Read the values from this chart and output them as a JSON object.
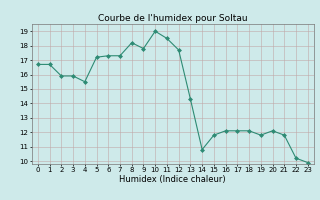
{
  "title": "Courbe de l'humidex pour Soltau",
  "xlabel": "Humidex (Indice chaleur)",
  "x": [
    0,
    1,
    2,
    3,
    4,
    5,
    6,
    7,
    8,
    9,
    10,
    11,
    12,
    13,
    14,
    15,
    16,
    17,
    18,
    19,
    20,
    21,
    22,
    23
  ],
  "y": [
    16.7,
    16.7,
    15.9,
    15.9,
    15.5,
    17.2,
    17.3,
    17.3,
    18.2,
    17.8,
    19.0,
    18.5,
    17.7,
    14.3,
    10.8,
    11.8,
    12.1,
    12.1,
    12.1,
    11.8,
    12.1,
    11.8,
    10.2,
    9.9
  ],
  "line_color": "#2e8b74",
  "marker": "D",
  "marker_size": 2.0,
  "line_width": 0.8,
  "bg_color": "#ceeaea",
  "grid_color": "#c0a8a8",
  "ylim": [
    9.8,
    19.5
  ],
  "xlim": [
    -0.5,
    23.5
  ],
  "yticks": [
    10,
    11,
    12,
    13,
    14,
    15,
    16,
    17,
    18,
    19
  ],
  "xticks": [
    0,
    1,
    2,
    3,
    4,
    5,
    6,
    7,
    8,
    9,
    10,
    11,
    12,
    13,
    14,
    15,
    16,
    17,
    18,
    19,
    20,
    21,
    22,
    23
  ],
  "tick_fontsize": 5.0,
  "label_fontsize": 6.0,
  "title_fontsize": 6.5,
  "title_color": "#000000"
}
